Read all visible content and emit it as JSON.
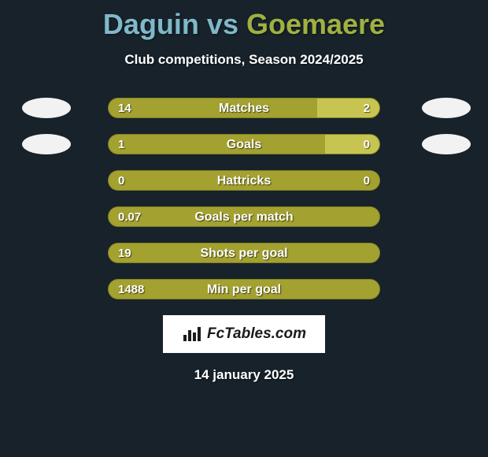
{
  "background_color": "#17222a",
  "title": {
    "full": "Daguin vs Goemaere",
    "p1": "Daguin",
    "vs": " vs ",
    "p2": "Goemaere",
    "p1_color": "#7fb8c9",
    "p2_color": "#a0b041"
  },
  "subtitle": "Club competitions, Season 2024/2025",
  "avatar_color": "#f2f2f2",
  "colors": {
    "left_bar": "#a3a12f",
    "right_bar": "#c8c451",
    "track": "#a3a12f"
  },
  "stats": [
    {
      "label": "Matches",
      "left_val": "14",
      "right_val": "2",
      "left_pct": 77,
      "right_pct": 23,
      "show_left_avatar": true,
      "show_right_avatar": true
    },
    {
      "label": "Goals",
      "left_val": "1",
      "right_val": "0",
      "left_pct": 80,
      "right_pct": 20,
      "show_left_avatar": true,
      "show_right_avatar": true
    },
    {
      "label": "Hattricks",
      "left_val": "0",
      "right_val": "0",
      "left_pct": 100,
      "right_pct": 0,
      "show_left_avatar": false,
      "show_right_avatar": false
    },
    {
      "label": "Goals per match",
      "left_val": "0.07",
      "right_val": "",
      "left_pct": 100,
      "right_pct": 0,
      "show_left_avatar": false,
      "show_right_avatar": false
    },
    {
      "label": "Shots per goal",
      "left_val": "19",
      "right_val": "",
      "left_pct": 100,
      "right_pct": 0,
      "show_left_avatar": false,
      "show_right_avatar": false
    },
    {
      "label": "Min per goal",
      "left_val": "1488",
      "right_val": "",
      "left_pct": 100,
      "right_pct": 0,
      "show_left_avatar": false,
      "show_right_avatar": false
    }
  ],
  "logo": {
    "text": "FcTables.com"
  },
  "date": "14 january 2025"
}
